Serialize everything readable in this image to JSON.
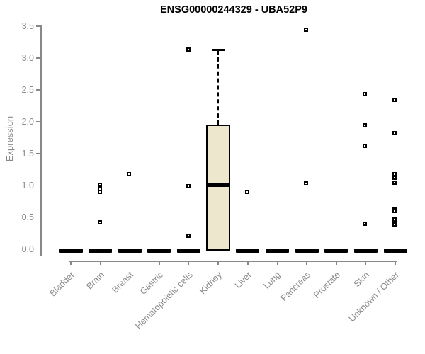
{
  "chart_data": {
    "type": "boxplot",
    "title": "ENSG00000244329 - UBA52P9",
    "xlabel": "",
    "ylabel": "Expression",
    "ylim": [
      0,
      3.5
    ],
    "yticks": [
      "0.0",
      "0.5",
      "1.0",
      "1.5",
      "2.0",
      "2.5",
      "3.0",
      "3.5"
    ],
    "grid": false,
    "legend": null,
    "categories": [
      "Bladder",
      "Brain",
      "Breast",
      "Gastric",
      "Hematopoietic cells",
      "Kidney",
      "Liver",
      "Lung",
      "Pancreas",
      "Prostate",
      "Skin",
      "Unknown / Other"
    ],
    "boxes": [
      {
        "category": "Bladder",
        "q1": 0,
        "median": 0,
        "q3": 0,
        "whisker_low": 0,
        "whisker_high": 0,
        "outliers": []
      },
      {
        "category": "Brain",
        "q1": 0,
        "median": 0,
        "q3": 0,
        "whisker_low": 0,
        "whisker_high": 0,
        "outliers": [
          1.01,
          0.94,
          0.9,
          0.42
        ]
      },
      {
        "category": "Breast",
        "q1": 0,
        "median": 0,
        "q3": 0,
        "whisker_low": 0,
        "whisker_high": 0,
        "outliers": [
          1.17
        ]
      },
      {
        "category": "Gastric",
        "q1": 0,
        "median": 0,
        "q3": 0,
        "whisker_low": 0,
        "whisker_high": 0,
        "outliers": []
      },
      {
        "category": "Hematopoietic cells",
        "q1": 0,
        "median": 0,
        "q3": 0,
        "whisker_low": 0,
        "whisker_high": 0,
        "outliers": [
          3.13,
          0.98,
          0.21
        ]
      },
      {
        "category": "Kidney",
        "q1": 0,
        "median": 1.0,
        "q3": 1.95,
        "whisker_low": 0,
        "whisker_high": 3.13,
        "outliers": []
      },
      {
        "category": "Liver",
        "q1": 0,
        "median": 0,
        "q3": 0,
        "whisker_low": 0,
        "whisker_high": 0,
        "outliers": [
          0.9
        ]
      },
      {
        "category": "Lung",
        "q1": 0,
        "median": 0,
        "q3": 0,
        "whisker_low": 0,
        "whisker_high": 0,
        "outliers": []
      },
      {
        "category": "Pancreas",
        "q1": 0,
        "median": 0,
        "q3": 0,
        "whisker_low": 0,
        "whisker_high": 0,
        "outliers": [
          3.44,
          1.03
        ]
      },
      {
        "category": "Prostate",
        "q1": 0,
        "median": 0,
        "q3": 0,
        "whisker_low": 0,
        "whisker_high": 0,
        "outliers": []
      },
      {
        "category": "Skin",
        "q1": 0,
        "median": 0,
        "q3": 0,
        "whisker_low": 0,
        "whisker_high": 0,
        "outliers": [
          2.43,
          1.94,
          1.62,
          0.4
        ]
      },
      {
        "category": "Unknown / Other",
        "q1": 0,
        "median": 0,
        "q3": 0,
        "whisker_low": 0,
        "whisker_high": 0,
        "outliers": [
          2.34,
          1.82,
          1.17,
          1.12,
          1.04,
          0.62,
          0.59,
          0.46,
          0.38
        ]
      }
    ],
    "colors": {
      "box_fill": "#ece7cd",
      "box_border": "#000000",
      "marks": "#000000",
      "axis": "#888888",
      "tick_label": "#8a8a8a",
      "title": "#000000"
    }
  }
}
